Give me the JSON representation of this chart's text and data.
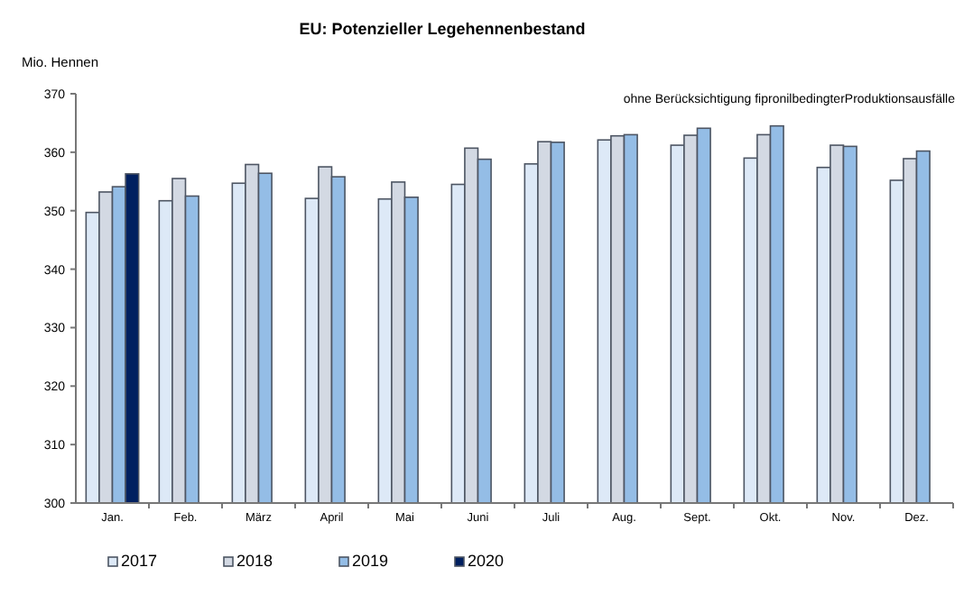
{
  "chart_data": {
    "type": "bar",
    "title": "EU: Potenzieller Legehennenbestand",
    "subtitle": "ohne Berücksichtigung fipronilbedingterProduktionsausfälle",
    "ylabel": "Mio. Hennen",
    "categories": [
      "Jan.",
      "Feb.",
      "März",
      "April",
      "Mai",
      "Juni",
      "Juli",
      "Aug.",
      "Sept.",
      "Okt.",
      "Nov.",
      "Dez."
    ],
    "series": [
      {
        "name": "2017",
        "color": "#dde9f7",
        "values": [
          349.7,
          351.7,
          354.7,
          352.1,
          352.0,
          354.5,
          358.0,
          362.1,
          361.2,
          359.0,
          357.4,
          355.2
        ]
      },
      {
        "name": "2018",
        "color": "#d3d9e3",
        "values": [
          353.2,
          355.5,
          357.9,
          357.5,
          354.9,
          360.7,
          361.8,
          362.8,
          362.9,
          363.0,
          361.2,
          358.9
        ]
      },
      {
        "name": "2019",
        "color": "#94bde6",
        "values": [
          354.1,
          352.5,
          356.4,
          355.8,
          352.3,
          358.8,
          361.7,
          363.0,
          364.1,
          364.5,
          361.0,
          360.2
        ]
      },
      {
        "name": "2020",
        "color": "#002060",
        "values": [
          356.3,
          null,
          null,
          null,
          null,
          null,
          null,
          null,
          null,
          null,
          null,
          null
        ]
      }
    ],
    "ylim": [
      300,
      370
    ],
    "yticks": [
      300,
      310,
      320,
      330,
      340,
      350,
      360,
      370
    ],
    "grid": false,
    "legend": "bottom"
  }
}
